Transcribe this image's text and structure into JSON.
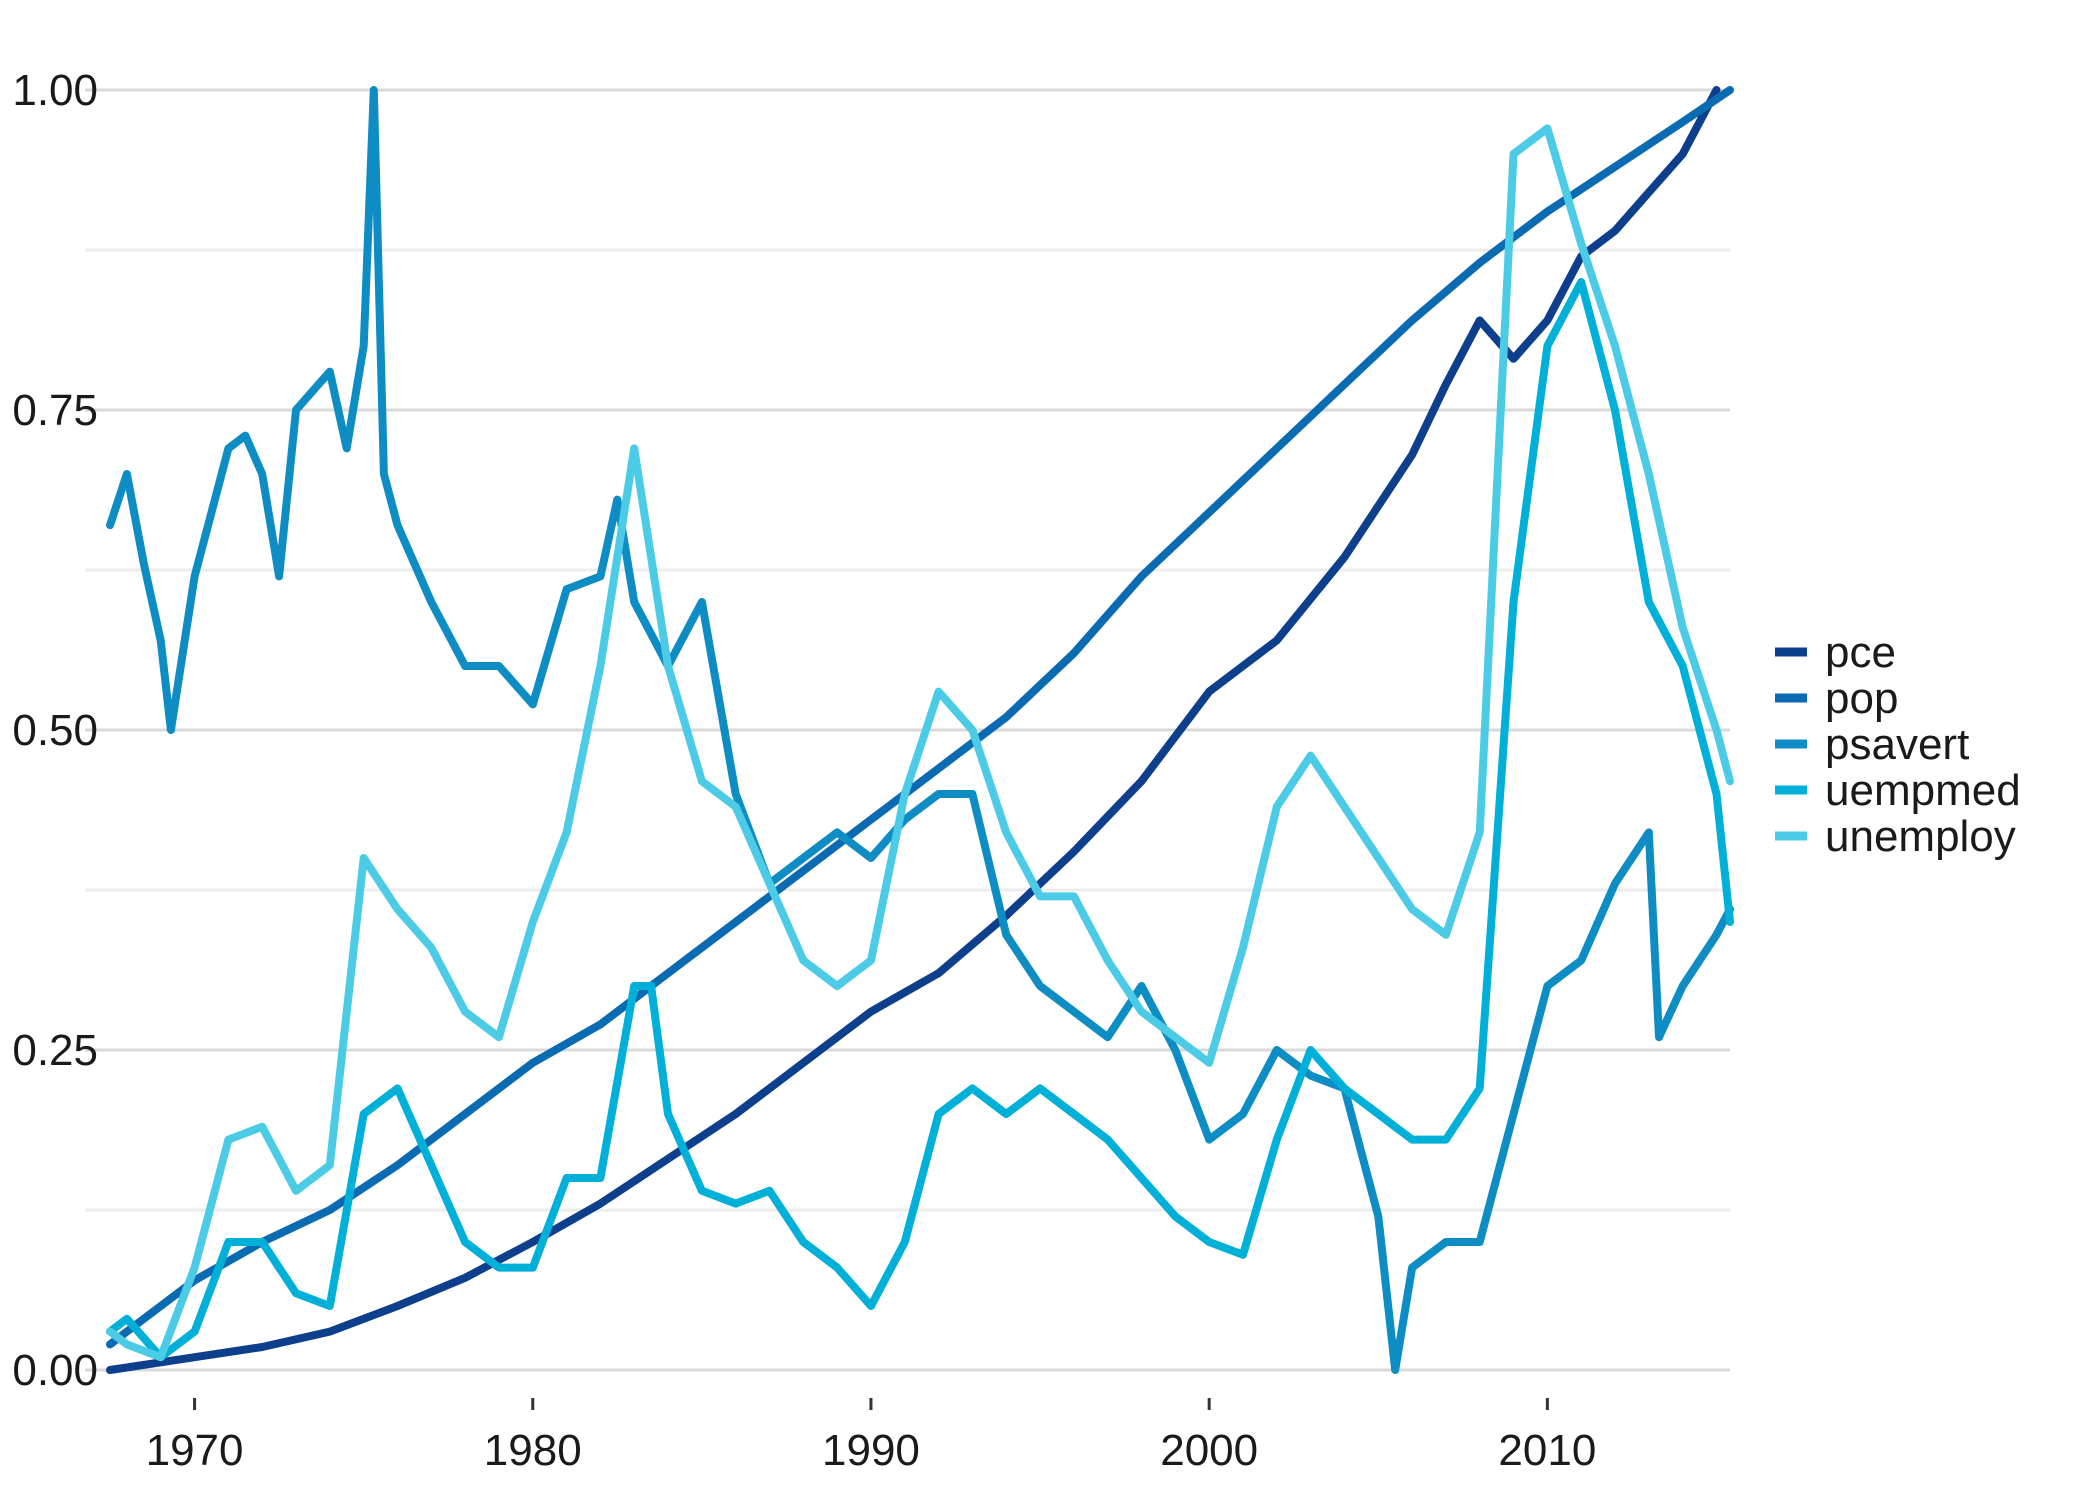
{
  "chart_data": {
    "type": "line",
    "title": "",
    "xlabel": "",
    "ylabel": "",
    "xlim": [
      1967.5,
      2015.4
    ],
    "ylim": [
      0,
      1
    ],
    "x_ticks": [
      1970,
      1980,
      1990,
      2000,
      2010
    ],
    "y_ticks": [
      0,
      0.25,
      0.5,
      0.75,
      1
    ],
    "x_tick_labels": [
      "1970",
      "1980",
      "1990",
      "2000",
      "2010"
    ],
    "y_tick_labels": [
      "0.00",
      "0.25",
      "0.50",
      "0.75",
      "1.00"
    ],
    "grid": true,
    "legend_position": "right",
    "series": [
      {
        "name": "pce",
        "color": "#0d3f8c",
        "points": [
          [
            1967.5,
            0.0
          ],
          [
            1970,
            0.01
          ],
          [
            1972,
            0.018
          ],
          [
            1974,
            0.03
          ],
          [
            1976,
            0.05
          ],
          [
            1978,
            0.072
          ],
          [
            1980,
            0.1
          ],
          [
            1982,
            0.13
          ],
          [
            1984,
            0.165
          ],
          [
            1986,
            0.2
          ],
          [
            1988,
            0.24
          ],
          [
            1990,
            0.28
          ],
          [
            1992,
            0.31
          ],
          [
            1994,
            0.355
          ],
          [
            1996,
            0.405
          ],
          [
            1998,
            0.46
          ],
          [
            2000,
            0.53
          ],
          [
            2002,
            0.57
          ],
          [
            2004,
            0.635
          ],
          [
            2006,
            0.715
          ],
          [
            2007,
            0.77
          ],
          [
            2008,
            0.82
          ],
          [
            2009,
            0.79
          ],
          [
            2010,
            0.82
          ],
          [
            2011,
            0.87
          ],
          [
            2012,
            0.89
          ],
          [
            2013,
            0.92
          ],
          [
            2014,
            0.95
          ],
          [
            2015,
            1.0
          ]
        ]
      },
      {
        "name": "pop",
        "color": "#0a6bb3",
        "points": [
          [
            1967.5,
            0.02
          ],
          [
            1970,
            0.07
          ],
          [
            1972,
            0.1
          ],
          [
            1974,
            0.125
          ],
          [
            1976,
            0.16
          ],
          [
            1978,
            0.2
          ],
          [
            1980,
            0.24
          ],
          [
            1982,
            0.27
          ],
          [
            1984,
            0.31
          ],
          [
            1986,
            0.35
          ],
          [
            1988,
            0.39
          ],
          [
            1990,
            0.43
          ],
          [
            1992,
            0.47
          ],
          [
            1994,
            0.51
          ],
          [
            1996,
            0.56
          ],
          [
            1998,
            0.62
          ],
          [
            2000,
            0.67
          ],
          [
            2002,
            0.72
          ],
          [
            2004,
            0.77
          ],
          [
            2006,
            0.82
          ],
          [
            2008,
            0.865
          ],
          [
            2010,
            0.905
          ],
          [
            2012,
            0.94
          ],
          [
            2014,
            0.975
          ],
          [
            2015.4,
            1.0
          ]
        ]
      },
      {
        "name": "psavert",
        "color": "#0e8cc4",
        "points": [
          [
            1967.5,
            0.66
          ],
          [
            1968,
            0.7
          ],
          [
            1968.5,
            0.63
          ],
          [
            1969,
            0.57
          ],
          [
            1969.3,
            0.5
          ],
          [
            1970,
            0.62
          ],
          [
            1971,
            0.72
          ],
          [
            1971.5,
            0.73
          ],
          [
            1972,
            0.7
          ],
          [
            1972.5,
            0.62
          ],
          [
            1973,
            0.75
          ],
          [
            1974,
            0.78
          ],
          [
            1974.5,
            0.72
          ],
          [
            1975,
            0.8
          ],
          [
            1975.3,
            1.0
          ],
          [
            1975.6,
            0.7
          ],
          [
            1976,
            0.66
          ],
          [
            1977,
            0.6
          ],
          [
            1978,
            0.55
          ],
          [
            1979,
            0.55
          ],
          [
            1980,
            0.52
          ],
          [
            1981,
            0.61
          ],
          [
            1982,
            0.62
          ],
          [
            1982.5,
            0.68
          ],
          [
            1983,
            0.6
          ],
          [
            1984,
            0.55
          ],
          [
            1985,
            0.6
          ],
          [
            1986,
            0.45
          ],
          [
            1987,
            0.38
          ],
          [
            1988,
            0.4
          ],
          [
            1989,
            0.42
          ],
          [
            1990,
            0.4
          ],
          [
            1991,
            0.43
          ],
          [
            1992,
            0.45
          ],
          [
            1993,
            0.45
          ],
          [
            1994,
            0.34
          ],
          [
            1995,
            0.3
          ],
          [
            1996,
            0.28
          ],
          [
            1997,
            0.26
          ],
          [
            1998,
            0.3
          ],
          [
            1999,
            0.25
          ],
          [
            2000,
            0.18
          ],
          [
            2001,
            0.2
          ],
          [
            2002,
            0.25
          ],
          [
            2003,
            0.23
          ],
          [
            2004,
            0.22
          ],
          [
            2005,
            0.12
          ],
          [
            2005.5,
            0.0
          ],
          [
            2006,
            0.08
          ],
          [
            2007,
            0.1
          ],
          [
            2008,
            0.1
          ],
          [
            2009,
            0.2
          ],
          [
            2010,
            0.3
          ],
          [
            2011,
            0.32
          ],
          [
            2012,
            0.38
          ],
          [
            2013,
            0.42
          ],
          [
            2013.3,
            0.26
          ],
          [
            2014,
            0.3
          ],
          [
            2015,
            0.34
          ],
          [
            2015.4,
            0.36
          ]
        ]
      },
      {
        "name": "uempmed",
        "color": "#00b0d8",
        "points": [
          [
            1967.5,
            0.03
          ],
          [
            1968,
            0.04
          ],
          [
            1969,
            0.01
          ],
          [
            1970,
            0.03
          ],
          [
            1971,
            0.1
          ],
          [
            1972,
            0.1
          ],
          [
            1973,
            0.06
          ],
          [
            1974,
            0.05
          ],
          [
            1975,
            0.2
          ],
          [
            1976,
            0.22
          ],
          [
            1977,
            0.16
          ],
          [
            1978,
            0.1
          ],
          [
            1979,
            0.08
          ],
          [
            1980,
            0.08
          ],
          [
            1981,
            0.15
          ],
          [
            1982,
            0.15
          ],
          [
            1983,
            0.3
          ],
          [
            1983.5,
            0.3
          ],
          [
            1984,
            0.2
          ],
          [
            1985,
            0.14
          ],
          [
            1986,
            0.13
          ],
          [
            1987,
            0.14
          ],
          [
            1988,
            0.1
          ],
          [
            1989,
            0.08
          ],
          [
            1990,
            0.05
          ],
          [
            1991,
            0.1
          ],
          [
            1992,
            0.2
          ],
          [
            1993,
            0.22
          ],
          [
            1994,
            0.2
          ],
          [
            1995,
            0.22
          ],
          [
            1996,
            0.2
          ],
          [
            1997,
            0.18
          ],
          [
            1998,
            0.15
          ],
          [
            1999,
            0.12
          ],
          [
            2000,
            0.1
          ],
          [
            2001,
            0.09
          ],
          [
            2002,
            0.18
          ],
          [
            2003,
            0.25
          ],
          [
            2004,
            0.22
          ],
          [
            2005,
            0.2
          ],
          [
            2006,
            0.18
          ],
          [
            2007,
            0.18
          ],
          [
            2008,
            0.22
          ],
          [
            2009,
            0.6
          ],
          [
            2010,
            0.8
          ],
          [
            2011,
            0.85
          ],
          [
            2012,
            0.75
          ],
          [
            2013,
            0.6
          ],
          [
            2014,
            0.55
          ],
          [
            2015,
            0.45
          ],
          [
            2015.4,
            0.35
          ]
        ]
      },
      {
        "name": "unemploy",
        "color": "#4ccbe6",
        "points": [
          [
            1967.5,
            0.03
          ],
          [
            1968,
            0.02
          ],
          [
            1969,
            0.01
          ],
          [
            1970,
            0.08
          ],
          [
            1971,
            0.18
          ],
          [
            1972,
            0.19
          ],
          [
            1973,
            0.14
          ],
          [
            1974,
            0.16
          ],
          [
            1975,
            0.4
          ],
          [
            1976,
            0.36
          ],
          [
            1977,
            0.33
          ],
          [
            1978,
            0.28
          ],
          [
            1979,
            0.26
          ],
          [
            1980,
            0.35
          ],
          [
            1981,
            0.42
          ],
          [
            1982,
            0.55
          ],
          [
            1983,
            0.72
          ],
          [
            1984,
            0.55
          ],
          [
            1985,
            0.46
          ],
          [
            1986,
            0.44
          ],
          [
            1987,
            0.38
          ],
          [
            1988,
            0.32
          ],
          [
            1989,
            0.3
          ],
          [
            1990,
            0.32
          ],
          [
            1991,
            0.45
          ],
          [
            1992,
            0.53
          ],
          [
            1993,
            0.5
          ],
          [
            1994,
            0.42
          ],
          [
            1995,
            0.37
          ],
          [
            1996,
            0.37
          ],
          [
            1997,
            0.32
          ],
          [
            1998,
            0.28
          ],
          [
            1999,
            0.26
          ],
          [
            2000,
            0.24
          ],
          [
            2001,
            0.33
          ],
          [
            2002,
            0.44
          ],
          [
            2003,
            0.48
          ],
          [
            2004,
            0.44
          ],
          [
            2005,
            0.4
          ],
          [
            2006,
            0.36
          ],
          [
            2007,
            0.34
          ],
          [
            2008,
            0.42
          ],
          [
            2009,
            0.95
          ],
          [
            2010,
            0.97
          ],
          [
            2011,
            0.88
          ],
          [
            2012,
            0.8
          ],
          [
            2013,
            0.7
          ],
          [
            2014,
            0.58
          ],
          [
            2015,
            0.5
          ],
          [
            2015.4,
            0.46
          ]
        ]
      }
    ]
  }
}
